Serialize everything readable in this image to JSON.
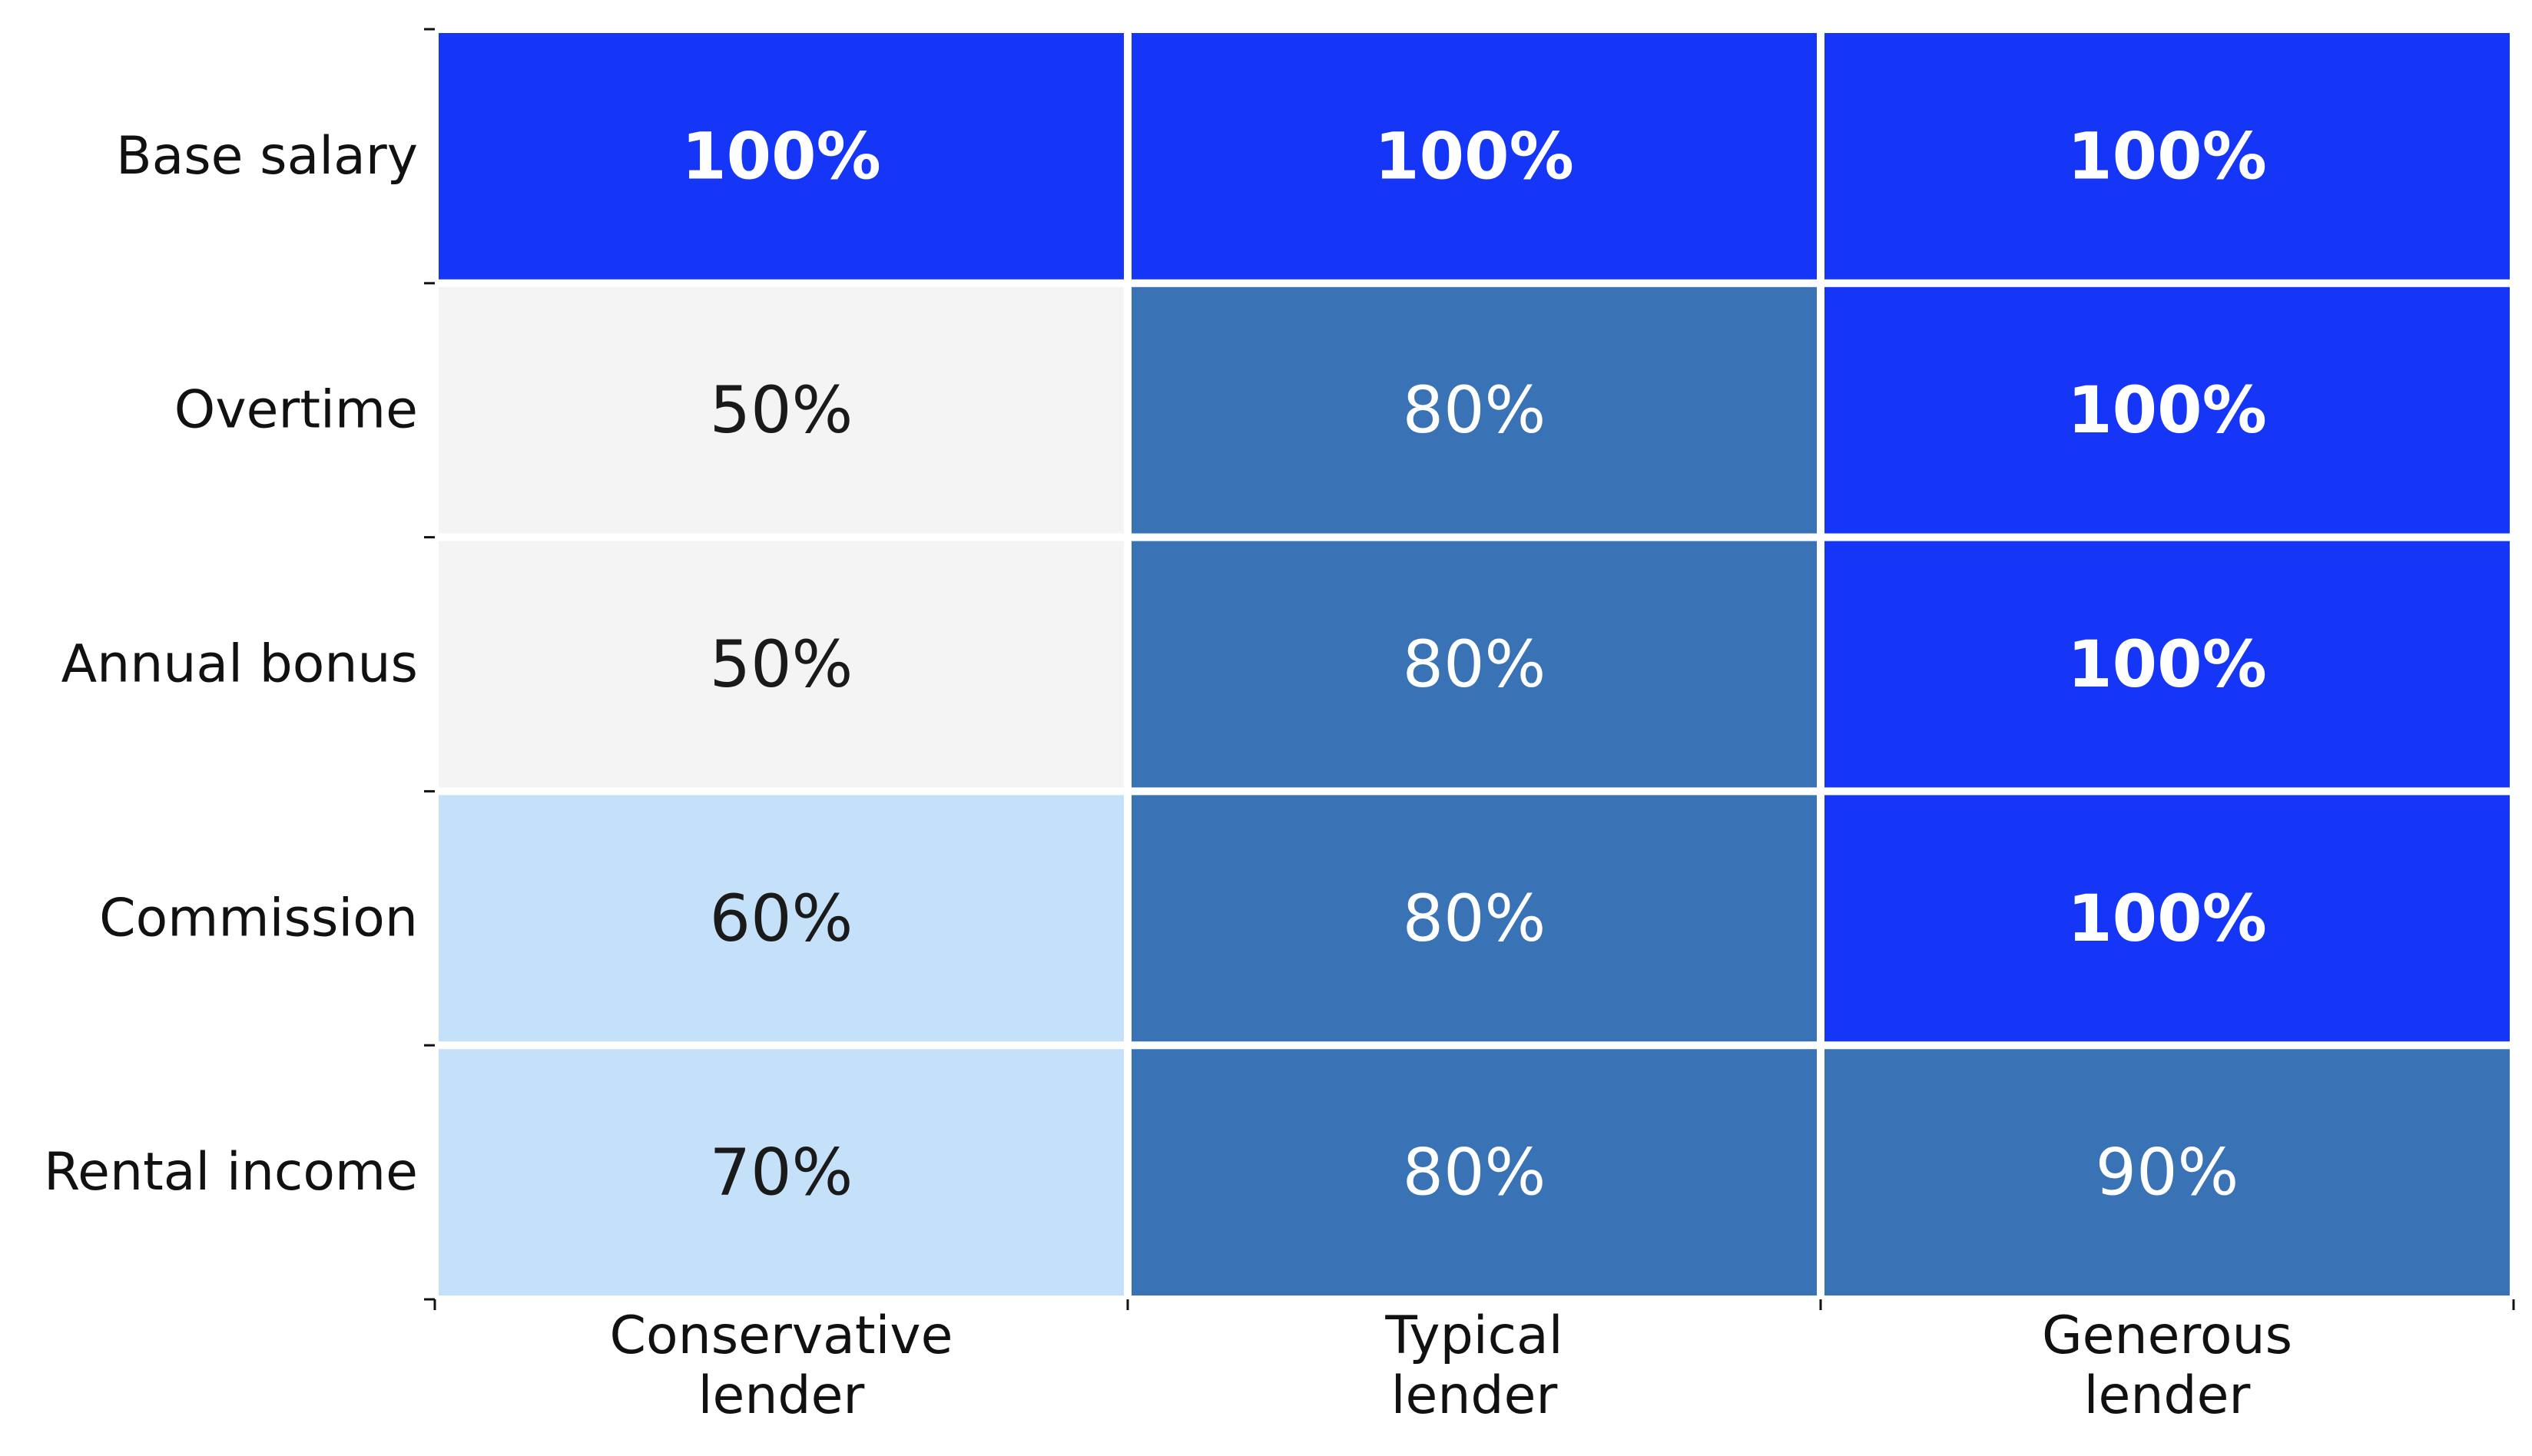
{
  "chart_data": {
    "type": "heatmap",
    "title": "",
    "xlabel": "",
    "ylabel": "",
    "rows": [
      "Base salary",
      "Overtime",
      "Annual bonus",
      "Commission",
      "Rental income"
    ],
    "columns": [
      [
        "Conservative",
        "lender"
      ],
      [
        "Typical",
        "lender"
      ],
      [
        "Generous",
        "lender"
      ]
    ],
    "values": [
      [
        100,
        100,
        100
      ],
      [
        50,
        80,
        100
      ],
      [
        50,
        80,
        100
      ],
      [
        60,
        80,
        100
      ],
      [
        70,
        80,
        90
      ]
    ],
    "value_format": "{v}%",
    "grid": false,
    "legend": "none",
    "color_bins": [
      {
        "max": 50,
        "fill": "#f4f4f4",
        "text": "#1a1a1a",
        "bold": false
      },
      {
        "max": 70,
        "fill": "#c5e0f9",
        "text": "#1a1a1a",
        "bold": false
      },
      {
        "max": 90,
        "fill": "#3a72b6",
        "text": "#ffffff",
        "bold": false
      },
      {
        "max": 100,
        "fill": "#1636f7",
        "text": "#ffffff",
        "bold": true
      }
    ]
  }
}
